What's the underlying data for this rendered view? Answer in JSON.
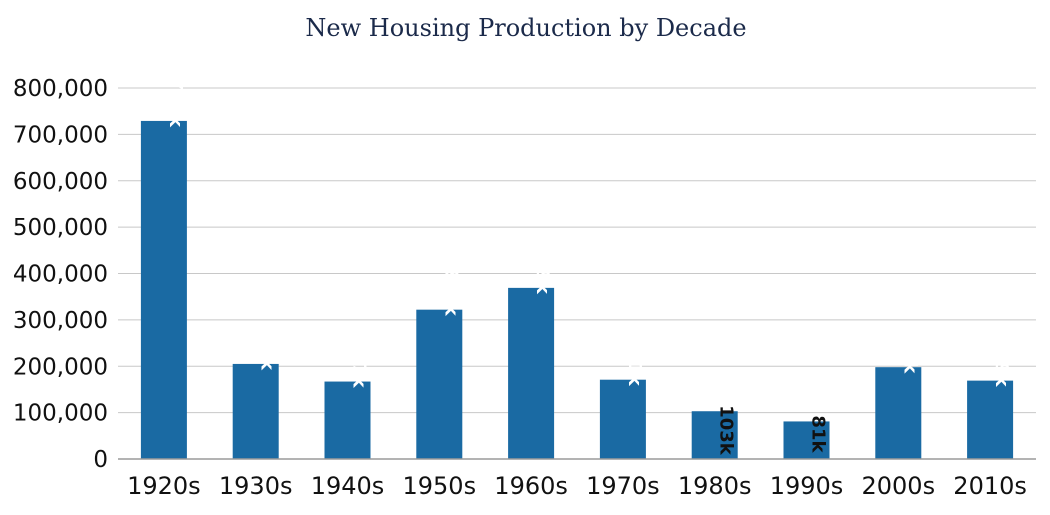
{
  "chart_data": {
    "type": "bar",
    "title": "New Housing Production by Decade",
    "xlabel": "",
    "ylabel": "",
    "categories": [
      "1920s",
      "1930s",
      "1940s",
      "1950s",
      "1960s",
      "1970s",
      "1980s",
      "1990s",
      "2000s",
      "2010s"
    ],
    "values": [
      729000,
      205000,
      167000,
      322000,
      369000,
      171000,
      103000,
      81000,
      198000,
      169000
    ],
    "data_labels": [
      "729k",
      "205k",
      "167k",
      "322k",
      "369k",
      "171k",
      "103k",
      "81k",
      "198k",
      "169k"
    ],
    "data_label_inside": [
      true,
      true,
      true,
      true,
      true,
      true,
      false,
      false,
      true,
      true
    ],
    "yticks": [
      "0",
      "100,000",
      "200,000",
      "300,000",
      "400,000",
      "500,000",
      "600,000",
      "700,000",
      "800,000"
    ],
    "ylim": [
      0,
      800000
    ],
    "grid": true,
    "legend": "none",
    "colors": {
      "bar": "#1a6aa3",
      "label_inside": "#ffffff",
      "label_outside": "#111111",
      "title": "#1b2a4a"
    }
  }
}
